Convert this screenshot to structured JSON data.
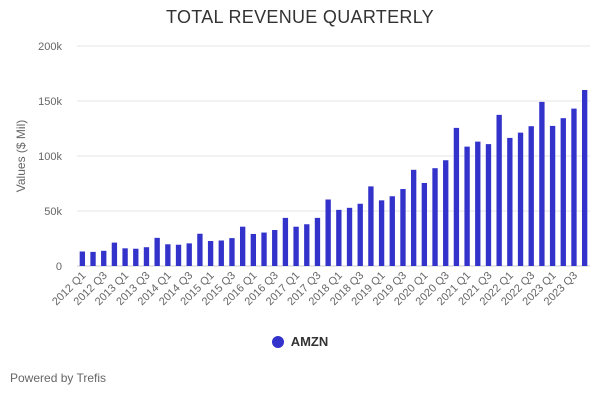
{
  "chart_data": {
    "type": "bar",
    "title": "TOTAL REVENUE QUARTERLY",
    "ylabel": "Values ($ Mil)",
    "ylim": [
      0,
      200000
    ],
    "yticks": [
      0,
      50000,
      100000,
      150000,
      200000
    ],
    "ytick_labels": [
      "0",
      "50k",
      "100k",
      "150k",
      "200k"
    ],
    "grid": true,
    "legend_position": "bottom-center",
    "bar_color": "#3333cc",
    "categories": [
      "2012 Q1",
      "2012 Q2",
      "2012 Q3",
      "2012 Q4",
      "2013 Q1",
      "2013 Q2",
      "2013 Q3",
      "2013 Q4",
      "2014 Q1",
      "2014 Q2",
      "2014 Q3",
      "2014 Q4",
      "2015 Q1",
      "2015 Q2",
      "2015 Q3",
      "2015 Q4",
      "2016 Q1",
      "2016 Q2",
      "2016 Q3",
      "2016 Q4",
      "2017 Q1",
      "2017 Q2",
      "2017 Q3",
      "2017 Q4",
      "2018 Q1",
      "2018 Q2",
      "2018 Q3",
      "2018 Q4",
      "2019 Q1",
      "2019 Q2",
      "2019 Q3",
      "2019 Q4",
      "2020 Q1",
      "2020 Q2",
      "2020 Q3",
      "2020 Q4",
      "2021 Q1",
      "2021 Q2",
      "2021 Q3",
      "2021 Q4",
      "2022 Q1",
      "2022 Q2",
      "2022 Q3",
      "2022 Q4",
      "2023 Q1",
      "2023 Q2",
      "2023 Q3",
      "2023 Q4"
    ],
    "xtick_labels": [
      "2012 Q1",
      "2012 Q3",
      "2013 Q1",
      "2013 Q3",
      "2014 Q1",
      "2014 Q3",
      "2015 Q1",
      "2015 Q3",
      "2016 Q1",
      "2016 Q3",
      "2017 Q1",
      "2017 Q3",
      "2018 Q1",
      "2018 Q3",
      "2019 Q1",
      "2019 Q3",
      "2020 Q1",
      "2020 Q3",
      "2021 Q1",
      "2021 Q3",
      "2022 Q1",
      "2022 Q3",
      "2023 Q1",
      "2023 Q3"
    ],
    "series": [
      {
        "name": "AMZN",
        "color": "#3333cc",
        "values": [
          13185,
          12834,
          13806,
          21268,
          16070,
          15704,
          17092,
          25587,
          19741,
          19340,
          20579,
          29328,
          22717,
          23185,
          25358,
          35747,
          29128,
          30404,
          32714,
          43741,
          35714,
          37955,
          43744,
          60453,
          51042,
          52886,
          56576,
          72383,
          59700,
          63404,
          69981,
          87437,
          75452,
          88912,
          96145,
          125555,
          108518,
          113080,
          110812,
          137412,
          116444,
          121234,
          127101,
          149204,
          127358,
          134383,
          143083,
          160000
        ]
      }
    ]
  },
  "footer": {
    "credit": "Powered by Trefis"
  }
}
